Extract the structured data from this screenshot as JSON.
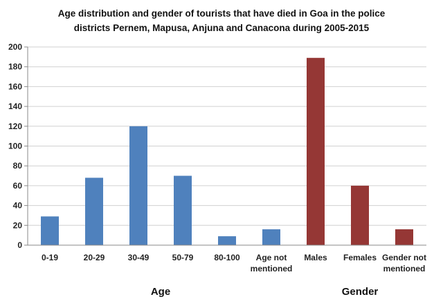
{
  "chart_data": {
    "type": "bar",
    "title": [
      "Age distribution and gender of tourists that have died in Goa in the police",
      "districts Pernem, Mapusa, Anjuna and Canacona during 2005-2015"
    ],
    "categories": [
      [
        "0-19"
      ],
      [
        "20-29"
      ],
      [
        "30-49"
      ],
      [
        "50-79"
      ],
      [
        "80-100"
      ],
      [
        "Age not",
        "mentioned"
      ],
      [
        "Males"
      ],
      [
        "Females"
      ],
      [
        "Gender not",
        "mentioned"
      ]
    ],
    "values": [
      29,
      68,
      120,
      70,
      9,
      16,
      189,
      60,
      16
    ],
    "groups": [
      {
        "label": "Age",
        "count": 6,
        "color": "#4f81bd"
      },
      {
        "label": "Gender",
        "count": 3,
        "color": "#953735"
      }
    ],
    "ylim": [
      0,
      200
    ],
    "yticks": [
      0,
      20,
      40,
      60,
      80,
      100,
      120,
      140,
      160,
      180,
      200
    ],
    "grid": true,
    "legend": "none"
  }
}
